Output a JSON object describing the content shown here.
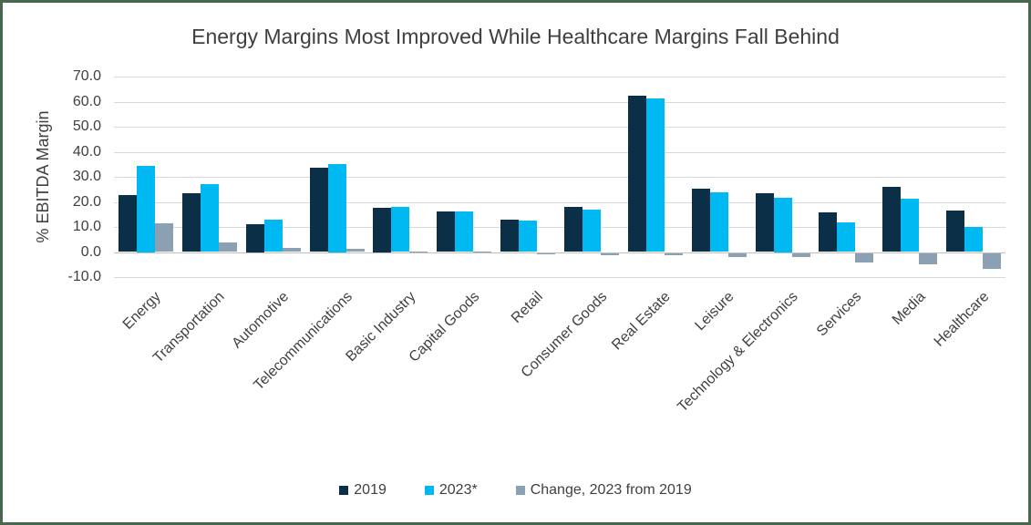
{
  "chart_data": {
    "type": "bar",
    "title": "Energy Margins Most Improved While Healthcare Margins Fall Behind",
    "xlabel": "",
    "ylabel": "% EBITDA Margin",
    "ylim": [
      -10.0,
      70.0
    ],
    "ytick_step": 10,
    "ytick_format_decimals": 1,
    "grid": true,
    "legend_position": "bottom-center",
    "categories": [
      "Energy",
      "Transportation",
      "Automotive",
      "Telecommunications",
      "Basic Industry",
      "Capital Goods",
      "Retail",
      "Consumer Goods",
      "Real Estate",
      "Leisure",
      "Technology & Electronics",
      "Services",
      "Media",
      "Healthcare"
    ],
    "series": [
      {
        "name": "2019",
        "color": "#0a2f46",
        "values": [
          22.9,
          23.3,
          11.0,
          33.7,
          17.5,
          16.3,
          12.9,
          17.9,
          62.3,
          25.3,
          23.3,
          15.7,
          25.9,
          16.4
        ]
      },
      {
        "name": "2023*",
        "color": "#00b9f2",
        "values": [
          34.5,
          27.2,
          12.8,
          35.0,
          17.9,
          16.3,
          12.6,
          16.9,
          61.3,
          23.7,
          21.5,
          11.8,
          21.2,
          10.1
        ]
      },
      {
        "name": "Change, 2023 from 2019",
        "color": "#8ba0b3",
        "values": [
          11.6,
          3.9,
          1.7,
          1.2,
          0.3,
          0.1,
          -0.3,
          -0.8,
          -0.9,
          -1.6,
          -1.8,
          -3.9,
          -4.7,
          -6.3
        ]
      }
    ],
    "colors": {
      "frame_border": "#45684d",
      "title_text": "#3f3f3f",
      "axis_text": "#404040",
      "gridline": "#d9d9d9",
      "zero_line": "#bfbfbf",
      "background": "#ffffff"
    }
  }
}
